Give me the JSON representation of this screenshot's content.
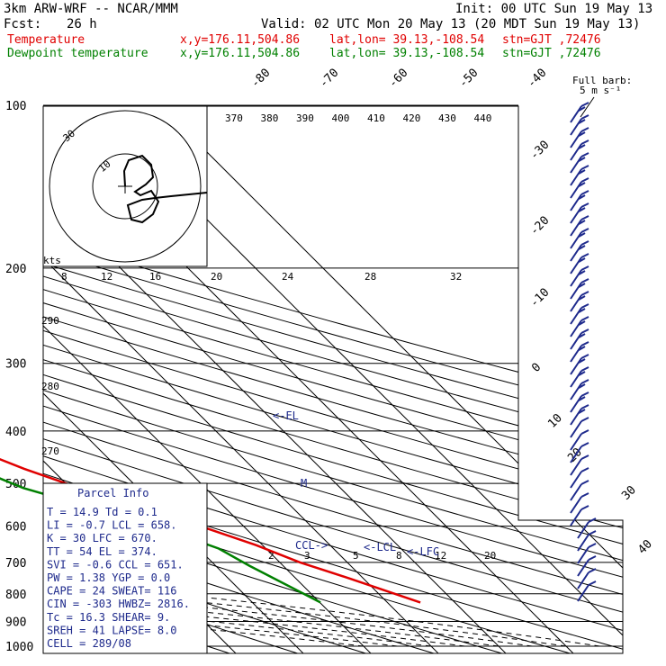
{
  "header": {
    "model": "3km ARW-WRF -- NCAR/MMM",
    "forecast_label": "Fcst:",
    "forecast_hours": "26 h",
    "init": "Init: 00 UTC Sun 19 May 13",
    "valid": "Valid: 02 UTC Mon 20 May 13 (20 MDT Sun 19 May 13)",
    "temp_line": {
      "label": "Temperature",
      "xy": "x,y=176.11,504.86",
      "latlon": "lat,lon= 39.13,-108.54",
      "stn": "stn=GJT ,72476"
    },
    "dew_line": {
      "label": "Dewpoint temperature",
      "xy": "x,y=176.11,504.86",
      "latlon": "lat,lon= 39.13,-108.54",
      "stn": "stn=GJT ,72476"
    },
    "full_barb": "Full barb:",
    "full_barb_unit": "5 m s⁻¹"
  },
  "colors": {
    "temperature": "#e00000",
    "dewpoint": "#008000",
    "annotations": "#1e2a8c",
    "grid": "#000000"
  },
  "parcel_info": {
    "title": "Parcel Info",
    "rows": [
      "T  =   14.9  Td =   0.1",
      "LI =   -0.7  LCL =  658.",
      "K  =     30  LFC =  670.",
      "TT =     54  EL  =  374.",
      "SVI =  -0.6  CCL =  651.",
      "PW =   1.38  YGP =   0.0",
      "CAPE =   24  SWEAT=  116",
      "CIN =  -303  HWBZ= 2816.",
      "Tc =   16.3  SHEAR=   9.",
      "SREH =   41  LAPSE=  8.0",
      "CELL = 289/08"
    ]
  },
  "level_labels": {
    "el": "<-EL",
    "lcl": "<-LCL",
    "lfc": "<-LFC",
    "ccl": "CCL->",
    "m": "M"
  },
  "hodograph": {
    "units": "kts",
    "ring_labels": [
      "30",
      "10"
    ]
  },
  "chart_data": {
    "type": "skew-t log-p diagram",
    "y_axis_unit": "hPa",
    "pressure_ticks": [
      100,
      200,
      300,
      400,
      500,
      600,
      700,
      800,
      900,
      1000
    ],
    "isotherm_labels": [
      -80,
      -70,
      -60,
      -50,
      -40,
      -30,
      -20,
      -10,
      0,
      10,
      20,
      30,
      40
    ],
    "theta_top_labels": [
      370,
      380,
      390,
      400,
      410,
      420,
      430,
      440
    ],
    "theta_left_labels": [
      290,
      280,
      270
    ],
    "mixing_ratio_top_labels": [
      8,
      12,
      16,
      20,
      24,
      28,
      32
    ],
    "mixing_ratio_low_labels": [
      2,
      3,
      5,
      8,
      12,
      20
    ],
    "temperature_profile": [
      {
        "p": 100,
        "t": -56
      },
      {
        "p": 130,
        "t": -58
      },
      {
        "p": 160,
        "t": -59
      },
      {
        "p": 200,
        "t": -58
      },
      {
        "p": 235,
        "t": -56
      },
      {
        "p": 270,
        "t": -54
      },
      {
        "p": 300,
        "t": -50
      },
      {
        "p": 340,
        "t": -45
      },
      {
        "p": 374,
        "t": -38
      },
      {
        "p": 420,
        "t": -30
      },
      {
        "p": 470,
        "t": -24
      },
      {
        "p": 500,
        "t": -20
      },
      {
        "p": 560,
        "t": -11
      },
      {
        "p": 650,
        "t": -1
      },
      {
        "p": 700,
        "t": 3
      },
      {
        "p": 750,
        "t": 8
      },
      {
        "p": 830,
        "t": 14.9
      }
    ],
    "dewpoint_profile": [
      {
        "p": 100,
        "t": -90
      },
      {
        "p": 130,
        "t": -91
      },
      {
        "p": 160,
        "t": -89
      },
      {
        "p": 200,
        "t": -87
      },
      {
        "p": 250,
        "t": -86
      },
      {
        "p": 290,
        "t": -83
      },
      {
        "p": 320,
        "t": -73
      },
      {
        "p": 360,
        "t": -55
      },
      {
        "p": 420,
        "t": -38
      },
      {
        "p": 480,
        "t": -30
      },
      {
        "p": 510,
        "t": -27
      },
      {
        "p": 600,
        "t": -13
      },
      {
        "p": 660,
        "t": -7
      },
      {
        "p": 710,
        "t": -5
      },
      {
        "p": 830,
        "t": 0.1
      }
    ]
  }
}
